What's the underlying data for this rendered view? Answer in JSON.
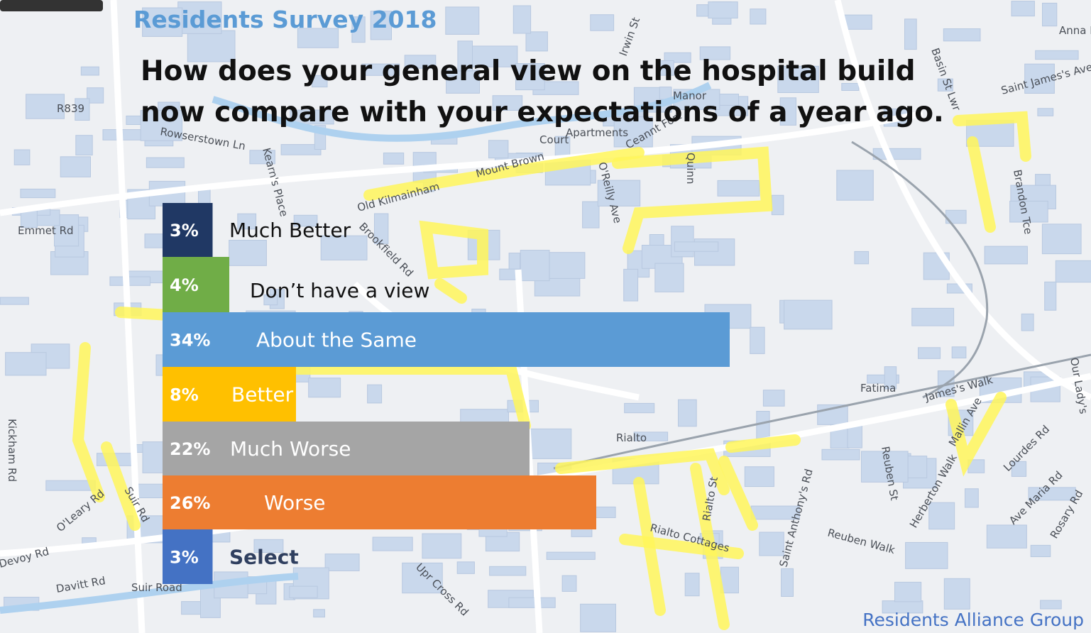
{
  "header": {
    "survey_title": "Residents Survey 2018",
    "question_line1": "How does  your general  view on the hospital build",
    "question_line2": "now compare with your expectations of a year ago."
  },
  "footer": {
    "org": "Residents Alliance Group"
  },
  "map": {
    "labels": [
      "Emmet Rd",
      "Kickham Rd",
      "O'Leary Rd",
      "Suir Rd",
      "Devoy Rd",
      "Davitt Rd",
      "Suir Road",
      "Rowserstown Ln",
      "R839",
      "Old Kilmainham",
      "Mount Brown",
      "Brookfield Rd",
      "Kearn's Place",
      "O'Reilly Ave",
      "Ceannt Fort",
      "Quinn",
      "Fatima",
      "James's Walk",
      "Rialto",
      "Rialto Cottages",
      "Rialto St",
      "Saint Anthony's Rd",
      "Reuben St",
      "Reuben Walk",
      "Herberton Walk",
      "Mallin Ave",
      "Lourdes Rd",
      "Ave Maria Rd",
      "Rosary Rd",
      "Brandon Tce",
      "Saint James's Ave",
      "Our Lady's",
      "Upr Cross Rd",
      "Manor",
      "Anna Livia",
      "Basin St Lwr",
      "Irwin St",
      "Court",
      "Apartments"
    ]
  },
  "chart_data": {
    "type": "bar",
    "orientation": "horizontal",
    "unit": "%",
    "categories": [
      "Much Better",
      "Don’t have a view",
      "About the Same",
      "Better",
      "Much Worse",
      "Worse",
      "Select"
    ],
    "values": [
      3,
      4,
      34,
      8,
      22,
      26,
      3
    ],
    "labels": [
      "3%",
      "4%",
      "34%",
      "8%",
      "22%",
      "26%",
      "3%"
    ],
    "colors": [
      "#203864",
      "#70ad47",
      "#5b9bd5",
      "#ffc000",
      "#a5a5a5",
      "#ed7d31",
      "#4472c4"
    ],
    "label_colors": [
      "#111111",
      "#111111",
      "#ffffff",
      "#ffffff",
      "#ffffff",
      "#ffffff",
      "#2f3f5f"
    ],
    "xlim": [
      0,
      34
    ]
  }
}
